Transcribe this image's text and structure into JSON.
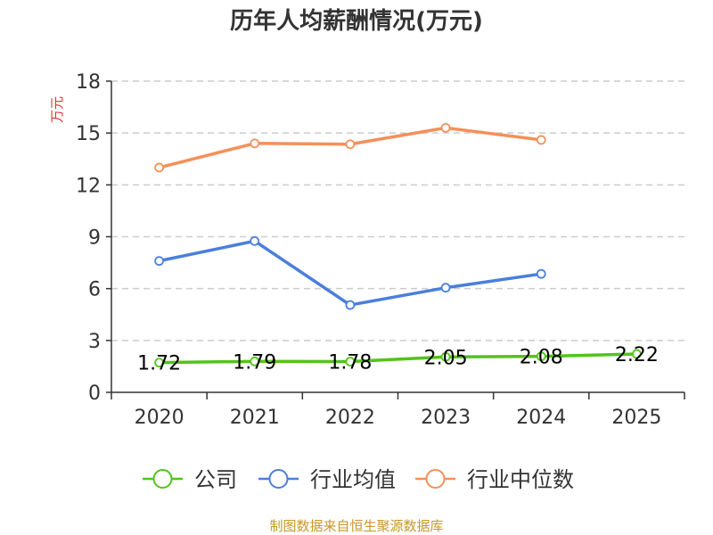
{
  "chart_data": {
    "type": "line",
    "title": "历年人均薪酬情况(万元)",
    "ylabel": "万元",
    "xlabel": "",
    "categories": [
      "2020",
      "2021",
      "2022",
      "2023",
      "2024",
      "2025"
    ],
    "ylim": [
      0,
      18
    ],
    "yticks": [
      "0",
      "3",
      "6",
      "9",
      "12",
      "15",
      "18"
    ],
    "grid": true,
    "legend_position": "bottom",
    "series": [
      {
        "name": "公司",
        "color": "#52c41a",
        "values": [
          1.72,
          1.79,
          1.78,
          2.05,
          2.08,
          2.22
        ],
        "labels": [
          "1.72",
          "1.79",
          "1.78",
          "2.05",
          "2.08",
          "2.22"
        ]
      },
      {
        "name": "行业均值",
        "color": "#4a7fdc",
        "values": [
          7.6,
          8.75,
          5.05,
          6.05,
          6.85,
          null
        ]
      },
      {
        "name": "行业中位数",
        "color": "#f4905a",
        "values": [
          13.0,
          14.4,
          14.35,
          15.3,
          14.6,
          null
        ]
      }
    ]
  },
  "footer": {
    "source": "制图数据来自恒生聚源数据库",
    "source_color": "#c8962a"
  },
  "colors": {
    "ylabel": "#e03030",
    "axis": "#333333",
    "grid": "#cccccc"
  }
}
